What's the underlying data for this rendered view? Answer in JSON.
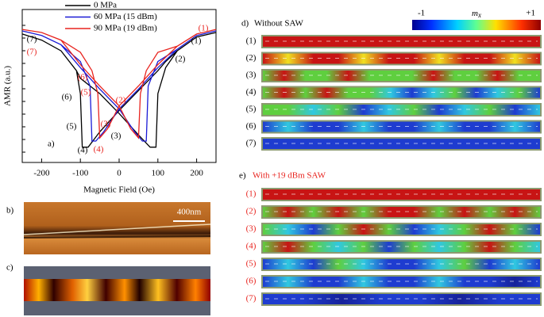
{
  "chart_data": {
    "type": "line",
    "panel_label": "a)",
    "x_label": "Magnetic Field (Oe)",
    "y_label": "AMR (a.u.)",
    "xlim": [
      -250,
      250
    ],
    "xticks": [
      -200,
      -100,
      0,
      100,
      200
    ],
    "ylim": [
      0,
      1
    ],
    "series": [
      {
        "name": "0 MPa",
        "color": "#000000",
        "x": [
          250,
          200,
          150,
          120,
          100,
          50,
          0,
          -50,
          -80,
          -95,
          -100,
          -110,
          -150,
          -200,
          -250,
          null,
          -250,
          -200,
          -150,
          -110,
          -100,
          -50,
          0,
          50,
          80,
          95,
          100,
          120,
          150,
          200,
          250
        ],
        "values": [
          0.85,
          0.82,
          0.73,
          0.66,
          0.6,
          0.47,
          0.34,
          0.2,
          0.1,
          0.1,
          0.45,
          0.6,
          0.73,
          0.8,
          0.84,
          null,
          0.84,
          0.8,
          0.73,
          0.6,
          0.55,
          0.45,
          0.32,
          0.18,
          0.1,
          0.1,
          0.45,
          0.62,
          0.73,
          0.82,
          0.85
        ]
      },
      {
        "name": "60 MPa (15 dBm)",
        "color": "#1a1ad6",
        "x": [
          250,
          200,
          150,
          100,
          50,
          0,
          -40,
          -60,
          -70,
          -75,
          -100,
          -150,
          -200,
          -250,
          null,
          -250,
          -200,
          -150,
          -100,
          -50,
          0,
          40,
          60,
          70,
          75,
          100,
          150,
          200,
          250
        ],
        "values": [
          0.86,
          0.83,
          0.74,
          0.62,
          0.48,
          0.35,
          0.2,
          0.14,
          0.14,
          0.5,
          0.66,
          0.77,
          0.83,
          0.86,
          null,
          0.86,
          0.83,
          0.77,
          0.62,
          0.48,
          0.35,
          0.2,
          0.14,
          0.14,
          0.5,
          0.66,
          0.74,
          0.83,
          0.86
        ]
      },
      {
        "name": "90 MPa (19 dBm)",
        "color": "#e8241f",
        "x": [
          250,
          200,
          150,
          100,
          50,
          0,
          -30,
          -50,
          -55,
          -70,
          -100,
          -150,
          -200,
          -250,
          null,
          -250,
          -200,
          -150,
          -100,
          -50,
          0,
          30,
          50,
          55,
          70,
          100,
          150,
          200,
          250
        ],
        "values": [
          0.87,
          0.84,
          0.76,
          0.64,
          0.5,
          0.37,
          0.22,
          0.16,
          0.45,
          0.6,
          0.72,
          0.8,
          0.85,
          0.87,
          null,
          0.87,
          0.85,
          0.8,
          0.64,
          0.5,
          0.37,
          0.22,
          0.16,
          0.45,
          0.6,
          0.72,
          0.76,
          0.84,
          0.87
        ]
      }
    ],
    "annotations": [
      {
        "text": "(1)",
        "color": "#000000"
      },
      {
        "text": "(2)",
        "color": "#000000"
      },
      {
        "text": "(3)",
        "color": "#000000"
      },
      {
        "text": "(4)",
        "color": "#000000"
      },
      {
        "text": "(5)",
        "color": "#000000"
      },
      {
        "text": "(6)",
        "color": "#000000"
      },
      {
        "text": "(7)",
        "color": "#000000"
      },
      {
        "text": "(1)",
        "color": "#e8241f"
      },
      {
        "text": "(2)",
        "color": "#e8241f"
      },
      {
        "text": "(3)",
        "color": "#e8241f"
      },
      {
        "text": "(4)",
        "color": "#e8241f"
      },
      {
        "text": "(5)",
        "color": "#e8241f"
      },
      {
        "text": "(6)",
        "color": "#e8241f"
      },
      {
        "text": "(7)",
        "color": "#e8241f"
      }
    ]
  },
  "panel_b": {
    "label": "b)",
    "scale_bar": "400nm"
  },
  "panel_c": {
    "label": "c)"
  },
  "panel_d": {
    "label": "d)",
    "title": "Without SAW",
    "colorbar": {
      "min": "-1",
      "name": "m",
      "subscript": "x",
      "max": "+1"
    },
    "rows": [
      "(1)",
      "(2)",
      "(3)",
      "(4)",
      "(5)",
      "(6)",
      "(7)"
    ]
  },
  "panel_e": {
    "label": "e)",
    "title": "With +19 dBm SAW",
    "rows": [
      "(1)",
      "(2)",
      "(3)",
      "(4)",
      "(5)",
      "(6)",
      "(7)"
    ]
  }
}
